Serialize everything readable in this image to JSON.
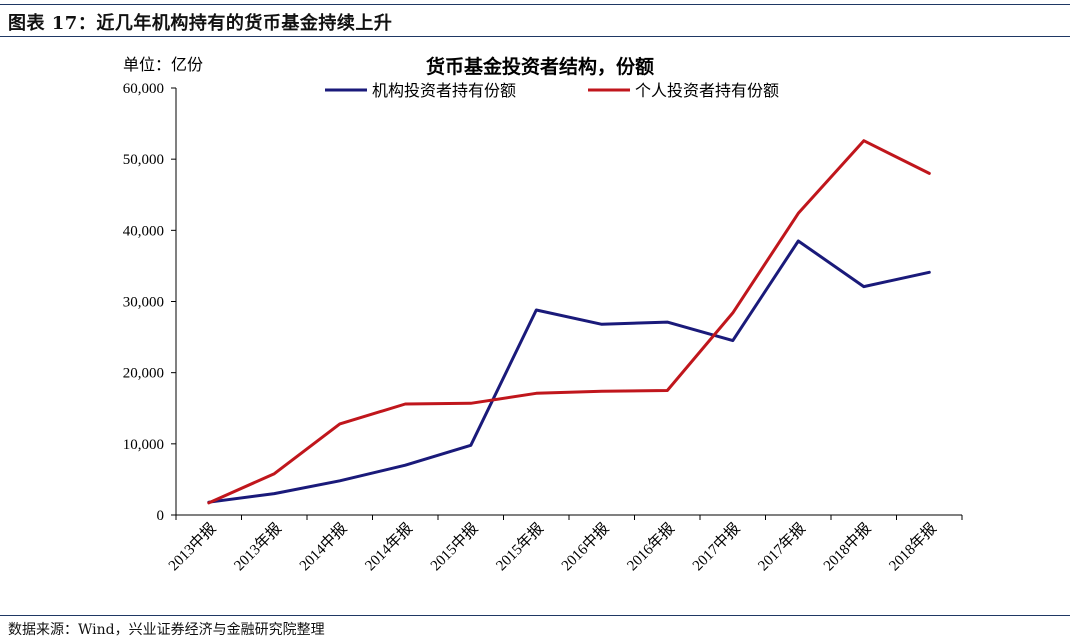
{
  "figure": {
    "title": "图表 17：近几年机构持有的货币基金持续上升",
    "source": "数据来源：Wind，兴业证券经济与金融研究院整理"
  },
  "chart_data": {
    "type": "line",
    "title": "货币基金投资者结构，份额",
    "unit_label": "单位：亿份",
    "categories": [
      "2013中报",
      "2013年报",
      "2014中报",
      "2014年报",
      "2015中报",
      "2015年报",
      "2016中报",
      "2016年报",
      "2017中报",
      "2017年报",
      "2018中报",
      "2018年报"
    ],
    "series": [
      {
        "name": "机构投资者持有份额",
        "color": "#1a1a7a",
        "values": [
          1800,
          3000,
          4800,
          7000,
          9800,
          28800,
          26800,
          27100,
          24500,
          38500,
          32100,
          34100
        ]
      },
      {
        "name": "个人投资者持有份额",
        "color": "#c0161c",
        "values": [
          1700,
          5800,
          12800,
          15600,
          15700,
          17100,
          17400,
          17500,
          28400,
          42400,
          52600,
          48000
        ]
      }
    ],
    "ylim": [
      0,
      60000
    ],
    "yticks": [
      0,
      10000,
      20000,
      30000,
      40000,
      50000,
      60000
    ],
    "ytick_labels": [
      "0",
      "10,000",
      "20,000",
      "30,000",
      "40,000",
      "50,000",
      "60,000"
    ],
    "xlabel": "",
    "ylabel": "",
    "grid": false,
    "legend": "top"
  }
}
